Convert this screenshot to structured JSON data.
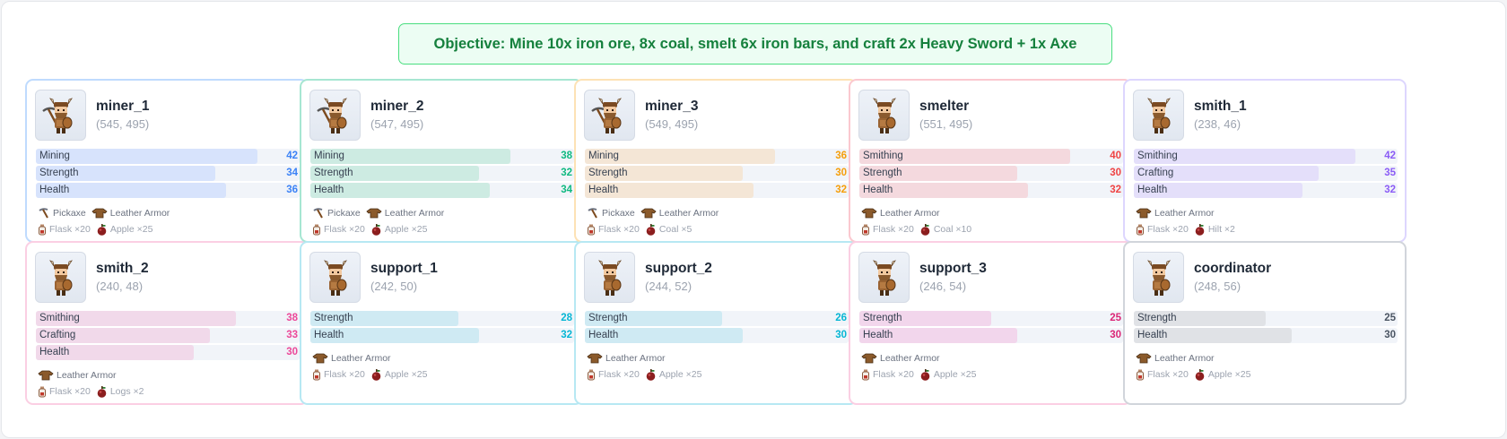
{
  "objective": "Objective: Mine 10x iron ore, 8x coal, smelt 6x iron bars, and craft 2x Heavy Sword + 1x Axe",
  "colors": {
    "blue": {
      "fill": "#d7e3fc",
      "text": "#3b82f6",
      "border": "#bfdbfe"
    },
    "green": {
      "fill": "#cdebe2",
      "text": "#10b981",
      "border": "#a7e6d2"
    },
    "orange": {
      "fill": "#f4e6d6",
      "text": "#f59e0b",
      "border": "#fde2b5"
    },
    "red": {
      "fill": "#f4d9de",
      "text": "#ef4444",
      "border": "#fbc8cf"
    },
    "purple": {
      "fill": "#e4dffa",
      "text": "#8b5cf6",
      "border": "#ddd6fe"
    },
    "pink": {
      "fill": "#f1d9ea",
      "text": "#ec4899",
      "border": "#fbcfe3"
    },
    "cyan": {
      "fill": "#cfeaf3",
      "text": "#06b6d4",
      "border": "#b7e8f3"
    },
    "magenta": {
      "fill": "#f2d6ec",
      "text": "#db2777",
      "border": "#fbcfe3"
    },
    "gray": {
      "fill": "#e0e2e6",
      "text": "#4b5563",
      "border": "#d1d5db"
    }
  },
  "stat_max": 50,
  "agents": [
    {
      "name": "miner_1",
      "coords": "(545, 495)",
      "color": "blue",
      "tool": "pickaxe",
      "stats": [
        {
          "label": "Mining",
          "value": 42
        },
        {
          "label": "Strength",
          "value": 34
        },
        {
          "label": "Health",
          "value": 36
        }
      ],
      "equipment": [
        {
          "icon": "pickaxe-icon",
          "label": "Pickaxe"
        },
        {
          "icon": "leather-armor-icon",
          "label": "Leather Armor"
        }
      ],
      "inventory": [
        {
          "icon": "flask-icon",
          "label": "Flask ×20"
        },
        {
          "icon": "apple-icon",
          "label": "Apple ×25"
        }
      ]
    },
    {
      "name": "miner_2",
      "coords": "(547, 495)",
      "color": "green",
      "tool": "pickaxe",
      "stats": [
        {
          "label": "Mining",
          "value": 38
        },
        {
          "label": "Strength",
          "value": 32
        },
        {
          "label": "Health",
          "value": 34
        }
      ],
      "equipment": [
        {
          "icon": "pickaxe-icon",
          "label": "Pickaxe"
        },
        {
          "icon": "leather-armor-icon",
          "label": "Leather Armor"
        }
      ],
      "inventory": [
        {
          "icon": "flask-icon",
          "label": "Flask ×20"
        },
        {
          "icon": "apple-icon",
          "label": "Apple ×25"
        }
      ]
    },
    {
      "name": "miner_3",
      "coords": "(549, 495)",
      "color": "orange",
      "tool": "pickaxe",
      "stats": [
        {
          "label": "Mining",
          "value": 36
        },
        {
          "label": "Strength",
          "value": 30
        },
        {
          "label": "Health",
          "value": 32
        }
      ],
      "equipment": [
        {
          "icon": "pickaxe-icon",
          "label": "Pickaxe"
        },
        {
          "icon": "leather-armor-icon",
          "label": "Leather Armor"
        }
      ],
      "inventory": [
        {
          "icon": "flask-icon",
          "label": "Flask ×20"
        },
        {
          "icon": "coal-icon",
          "label": "Coal ×5"
        }
      ]
    },
    {
      "name": "smelter",
      "coords": "(551, 495)",
      "color": "red",
      "tool": "none",
      "stats": [
        {
          "label": "Smithing",
          "value": 40
        },
        {
          "label": "Strength",
          "value": 30
        },
        {
          "label": "Health",
          "value": 32
        }
      ],
      "equipment": [
        {
          "icon": "leather-armor-icon",
          "label": "Leather Armor"
        }
      ],
      "inventory": [
        {
          "icon": "flask-icon",
          "label": "Flask ×20"
        },
        {
          "icon": "coal-icon",
          "label": "Coal ×10"
        }
      ]
    },
    {
      "name": "smith_1",
      "coords": "(238, 46)",
      "color": "purple",
      "tool": "none",
      "stats": [
        {
          "label": "Smithing",
          "value": 42
        },
        {
          "label": "Crafting",
          "value": 35
        },
        {
          "label": "Health",
          "value": 32
        }
      ],
      "equipment": [
        {
          "icon": "leather-armor-icon",
          "label": "Leather Armor"
        }
      ],
      "inventory": [
        {
          "icon": "flask-icon",
          "label": "Flask ×20"
        },
        {
          "icon": "hilt-icon",
          "label": "Hilt ×2"
        }
      ]
    },
    {
      "name": "smith_2",
      "coords": "(240, 48)",
      "color": "pink",
      "tool": "none",
      "stats": [
        {
          "label": "Smithing",
          "value": 38
        },
        {
          "label": "Crafting",
          "value": 33
        },
        {
          "label": "Health",
          "value": 30
        }
      ],
      "equipment": [
        {
          "icon": "leather-armor-icon",
          "label": "Leather Armor"
        }
      ],
      "inventory": [
        {
          "icon": "flask-icon",
          "label": "Flask ×20"
        },
        {
          "icon": "logs-icon",
          "label": "Logs ×2"
        }
      ]
    },
    {
      "name": "support_1",
      "coords": "(242, 50)",
      "color": "cyan",
      "tool": "none",
      "stats": [
        {
          "label": "Strength",
          "value": 28
        },
        {
          "label": "Health",
          "value": 32
        }
      ],
      "equipment": [
        {
          "icon": "leather-armor-icon",
          "label": "Leather Armor"
        }
      ],
      "inventory": [
        {
          "icon": "flask-icon",
          "label": "Flask ×20"
        },
        {
          "icon": "apple-icon",
          "label": "Apple ×25"
        }
      ]
    },
    {
      "name": "support_2",
      "coords": "(244, 52)",
      "color": "cyan",
      "tool": "none",
      "stats": [
        {
          "label": "Strength",
          "value": 26
        },
        {
          "label": "Health",
          "value": 30
        }
      ],
      "equipment": [
        {
          "icon": "leather-armor-icon",
          "label": "Leather Armor"
        }
      ],
      "inventory": [
        {
          "icon": "flask-icon",
          "label": "Flask ×20"
        },
        {
          "icon": "apple-icon",
          "label": "Apple ×25"
        }
      ]
    },
    {
      "name": "support_3",
      "coords": "(246, 54)",
      "color": "magenta",
      "tool": "none",
      "stats": [
        {
          "label": "Strength",
          "value": 25
        },
        {
          "label": "Health",
          "value": 30
        }
      ],
      "equipment": [
        {
          "icon": "leather-armor-icon",
          "label": "Leather Armor"
        }
      ],
      "inventory": [
        {
          "icon": "flask-icon",
          "label": "Flask ×20"
        },
        {
          "icon": "apple-icon",
          "label": "Apple ×25"
        }
      ]
    },
    {
      "name": "coordinator",
      "coords": "(248, 56)",
      "color": "gray",
      "tool": "none",
      "stats": [
        {
          "label": "Strength",
          "value": 25
        },
        {
          "label": "Health",
          "value": 30
        }
      ],
      "equipment": [
        {
          "icon": "leather-armor-icon",
          "label": "Leather Armor"
        }
      ],
      "inventory": [
        {
          "icon": "flask-icon",
          "label": "Flask ×20"
        },
        {
          "icon": "apple-icon",
          "label": "Apple ×25"
        }
      ]
    }
  ]
}
